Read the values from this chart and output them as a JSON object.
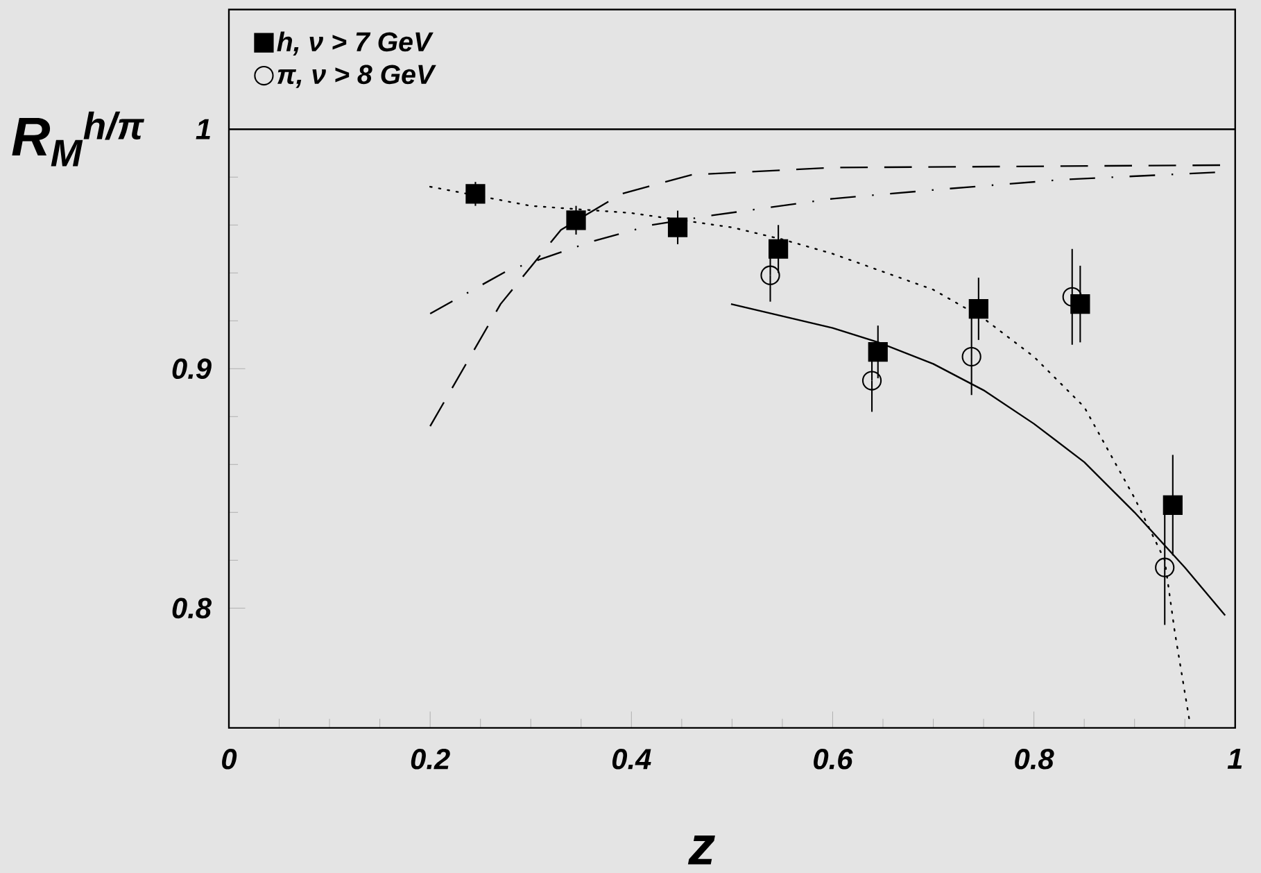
{
  "chart_data": {
    "type": "scatter",
    "xlabel": "z",
    "ylabel": "R$_{M}$$^{h/π}$",
    "xlim": [
      0,
      1
    ],
    "ylim": [
      0.75,
      1.05
    ],
    "xticks": [
      0,
      0.2,
      0.4,
      0.6,
      0.8,
      1
    ],
    "yticks": [
      0.8,
      0.9,
      1
    ],
    "grid": false,
    "legend": "top left",
    "ref_lines": [
      {
        "axis": "y",
        "value": 1,
        "color": "#000000"
      }
    ],
    "series": [
      {
        "name": "h, ν > 7 GeV",
        "marker": "square",
        "color": "#000000",
        "x": [
          0.245,
          0.345,
          0.446,
          0.546,
          0.645,
          0.745,
          0.846,
          0.938
        ],
        "values": [
          0.973,
          0.962,
          0.959,
          0.95,
          0.907,
          0.925,
          0.927,
          0.843
        ],
        "errors": [
          0.005,
          0.006,
          0.007,
          0.01,
          0.011,
          0.013,
          0.016,
          0.021
        ]
      },
      {
        "name": "π, ν > 8 GeV",
        "marker": "circle",
        "color": "#000000",
        "x": [
          0.538,
          0.639,
          0.738,
          0.838,
          0.93
        ],
        "values": [
          0.939,
          0.895,
          0.905,
          0.93,
          0.817
        ],
        "errors": [
          0.011,
          0.013,
          0.016,
          0.02,
          0.024
        ]
      },
      {
        "type": "line",
        "line_style": "dotted",
        "color": "#000000",
        "x": [
          0.2,
          0.25,
          0.3,
          0.4,
          0.5,
          0.55,
          0.6,
          0.7,
          0.75,
          0.8,
          0.85,
          0.9,
          0.93,
          0.94,
          0.955
        ],
        "values": [
          0.976,
          0.972,
          0.968,
          0.965,
          0.959,
          0.954,
          0.948,
          0.933,
          0.921,
          0.905,
          0.884,
          0.846,
          0.82,
          0.79,
          0.752
        ]
      },
      {
        "type": "line",
        "line_style": "solid",
        "color": "#000000",
        "x": [
          0.499,
          0.6,
          0.6455,
          0.7,
          0.75,
          0.8,
          0.85,
          0.9,
          0.95,
          0.99
        ],
        "values": [
          0.927,
          0.917,
          0.911,
          0.902,
          0.891,
          0.877,
          0.861,
          0.84,
          0.817,
          0.797
        ]
      },
      {
        "type": "line",
        "line_style": "dashed",
        "color": "#000000",
        "x": [
          0.2,
          0.27,
          0.33,
          0.39,
          0.46,
          0.6,
          0.985
        ],
        "values": [
          0.876,
          0.927,
          0.958,
          0.973,
          0.981,
          0.984,
          0.985
        ]
      },
      {
        "type": "line",
        "line_style": "dashdot",
        "color": "#000000",
        "x": [
          0.2,
          0.277,
          0.36,
          0.42,
          0.48,
          0.6,
          0.71,
          0.83,
          0.98
        ],
        "values": [
          0.923,
          0.941,
          0.953,
          0.96,
          0.964,
          0.971,
          0.975,
          0.979,
          0.982
        ]
      }
    ]
  }
}
